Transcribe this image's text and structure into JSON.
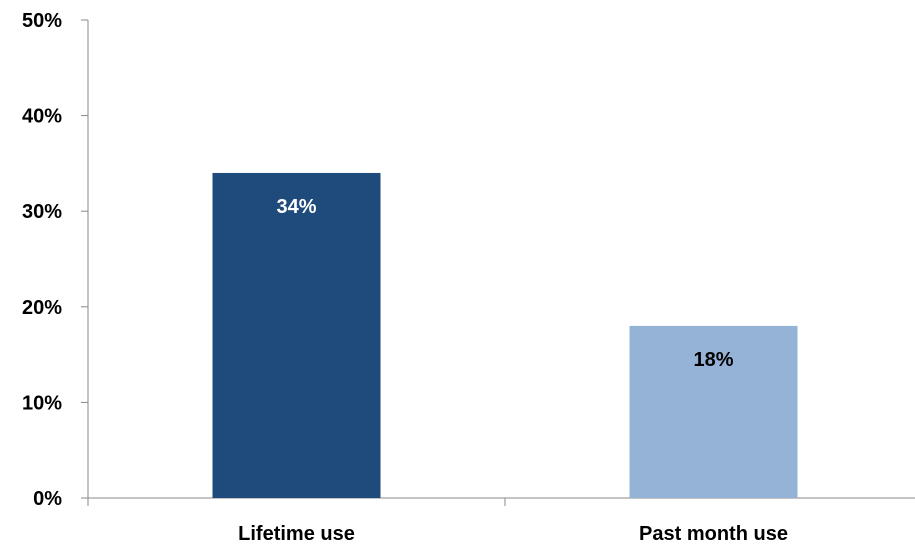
{
  "chart_data": {
    "type": "bar",
    "categories": [
      "Lifetime use",
      "Past month use"
    ],
    "values": [
      34,
      18
    ],
    "data_labels": [
      "34%",
      "18%"
    ],
    "ylim": [
      0,
      50
    ],
    "yticks": [
      {
        "value": 0,
        "label": "0%"
      },
      {
        "value": 10,
        "label": "10%"
      },
      {
        "value": 20,
        "label": "20%"
      },
      {
        "value": 30,
        "label": "30%"
      },
      {
        "value": 40,
        "label": "40%"
      },
      {
        "value": 50,
        "label": "50%"
      }
    ],
    "grid": false,
    "legend": "none",
    "bar_colors": [
      "#1f4a7c",
      "#95b3d7"
    ],
    "label_colors": [
      "#ffffff",
      "#000000"
    ],
    "axis_color": "#888888"
  }
}
